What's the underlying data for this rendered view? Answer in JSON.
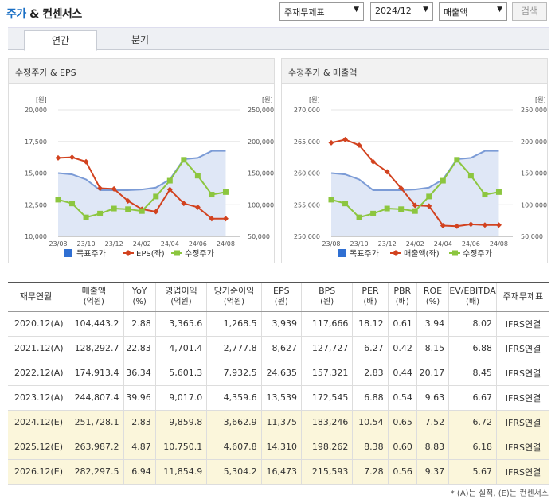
{
  "header": {
    "title_main": "주가",
    "title_rest": " & 컨센서스",
    "select_type": "주재무제표",
    "select_period": "2024/12",
    "select_metric": "매출액",
    "search_label": "검색"
  },
  "tabs": [
    "연간",
    "분기"
  ],
  "charts": [
    {
      "title": "수정주가 & EPS",
      "left_unit": "[원]",
      "right_unit": "[원]",
      "left_ticks": [
        "20,000",
        "17,500",
        "15,000",
        "12,500",
        "10,000"
      ],
      "right_ticks": [
        "250,000",
        "200,000",
        "150,000",
        "100,000",
        "50,000"
      ],
      "x_ticks": [
        "23/08",
        "23/10",
        "23/12",
        "24/02",
        "24/04",
        "24/06",
        "24/08"
      ],
      "legend": [
        "목표주가",
        "EPS(좌)",
        "수정주가"
      ]
    },
    {
      "title": "수정주가 & 매출액",
      "left_unit": "[원]",
      "right_unit": "[원]",
      "left_ticks": [
        "270,000",
        "265,000",
        "260,000",
        "255,000",
        "250,000"
      ],
      "right_ticks": [
        "250,000",
        "200,000",
        "150,000",
        "100,000",
        "50,000"
      ],
      "x_ticks": [
        "23/08",
        "23/10",
        "23/12",
        "24/02",
        "24/04",
        "24/06",
        "24/08"
      ],
      "legend": [
        "목표주가",
        "매출액(좌)",
        "수정주가"
      ]
    }
  ],
  "chart_data": [
    {
      "type": "line",
      "title": "수정주가 & EPS",
      "x": [
        0,
        1,
        2,
        3,
        4,
        5,
        6,
        7,
        8,
        9,
        10,
        11,
        12,
        13
      ],
      "x_tick_labels": [
        "23/08",
        "23/10",
        "23/12",
        "24/02",
        "24/04",
        "24/06",
        "24/08"
      ],
      "left_range": [
        10000,
        20000
      ],
      "right_range": [
        50000,
        250000
      ],
      "series": [
        {
          "name": "목표주가",
          "axis": "right",
          "color": "#7b9bd6",
          "area": true,
          "values": [
            150000,
            148000,
            140000,
            123000,
            123000,
            123000,
            124000,
            127000,
            140000,
            172000,
            174000,
            185000,
            185000,
            null
          ]
        },
        {
          "name": "EPS(좌)",
          "axis": "left",
          "color": "#d2421f",
          "marker": "diamond",
          "values": [
            16200,
            16250,
            15900,
            13800,
            13750,
            12800,
            12150,
            11950,
            13700,
            12600,
            12300,
            11400,
            11400,
            null
          ]
        },
        {
          "name": "수정주가",
          "axis": "right",
          "color": "#8cc63f",
          "marker": "square",
          "values": [
            108000,
            102000,
            80000,
            86000,
            94000,
            93000,
            90000,
            113000,
            138000,
            171000,
            146000,
            116000,
            120000,
            null
          ]
        }
      ]
    },
    {
      "type": "line",
      "title": "수정주가 & 매출액",
      "x": [
        0,
        1,
        2,
        3,
        4,
        5,
        6,
        7,
        8,
        9,
        10,
        11,
        12,
        13
      ],
      "x_tick_labels": [
        "23/08",
        "23/10",
        "23/12",
        "24/02",
        "24/04",
        "24/06",
        "24/08"
      ],
      "left_range": [
        250000,
        270000
      ],
      "right_range": [
        50000,
        250000
      ],
      "series": [
        {
          "name": "목표주가",
          "axis": "right",
          "color": "#7b9bd6",
          "area": true,
          "values": [
            150000,
            148000,
            140000,
            123000,
            123000,
            123000,
            124000,
            127000,
            140000,
            172000,
            174000,
            185000,
            185000,
            null
          ]
        },
        {
          "name": "매출액(좌)",
          "axis": "left",
          "color": "#d2421f",
          "marker": "diamond",
          "values": [
            264800,
            265300,
            264400,
            261800,
            260200,
            257600,
            254900,
            254800,
            251700,
            251600,
            251900,
            251800,
            251800,
            null
          ]
        },
        {
          "name": "수정주가",
          "axis": "right",
          "color": "#8cc63f",
          "marker": "square",
          "values": [
            108000,
            102000,
            80000,
            86000,
            94000,
            93000,
            90000,
            113000,
            138000,
            171000,
            146000,
            116000,
            120000,
            null
          ]
        }
      ]
    }
  ],
  "table": {
    "headers": [
      [
        "재무연월",
        ""
      ],
      [
        "매출액",
        "(억원)"
      ],
      [
        "YoY",
        "(%)"
      ],
      [
        "영업이익",
        "(억원)"
      ],
      [
        "당기순이익",
        "(억원)"
      ],
      [
        "EPS",
        "(원)"
      ],
      [
        "BPS",
        "(원)"
      ],
      [
        "PER",
        "(배)"
      ],
      [
        "PBR",
        "(배)"
      ],
      [
        "ROE",
        "(%)"
      ],
      [
        "EV/EBITDA",
        "(배)"
      ],
      [
        "주재무제표",
        ""
      ]
    ],
    "rows": [
      [
        "2020.12(A)",
        "104,443.2",
        "2.88",
        "3,365.6",
        "1,268.5",
        "3,939",
        "117,666",
        "18.12",
        "0.61",
        "3.94",
        "8.02",
        "IFRS연결"
      ],
      [
        "2021.12(A)",
        "128,292.7",
        "22.83",
        "4,701.4",
        "2,777.8",
        "8,627",
        "127,727",
        "6.27",
        "0.42",
        "8.15",
        "6.88",
        "IFRS연결"
      ],
      [
        "2022.12(A)",
        "174,913.4",
        "36.34",
        "5,601.3",
        "7,932.5",
        "24,635",
        "157,321",
        "2.83",
        "0.44",
        "20.17",
        "8.45",
        "IFRS연결"
      ],
      [
        "2023.12(A)",
        "244,807.4",
        "39.96",
        "9,017.0",
        "4,359.6",
        "13,539",
        "172,545",
        "6.88",
        "0.54",
        "9.63",
        "6.67",
        "IFRS연결"
      ],
      [
        "2024.12(E)",
        "251,728.1",
        "2.83",
        "9,859.8",
        "3,662.9",
        "11,375",
        "183,246",
        "10.54",
        "0.65",
        "7.52",
        "6.72",
        "IFRS연결"
      ],
      [
        "2025.12(E)",
        "263,987.2",
        "4.87",
        "10,750.1",
        "4,607.8",
        "14,310",
        "198,262",
        "8.38",
        "0.60",
        "8.83",
        "6.18",
        "IFRS연결"
      ],
      [
        "2026.12(E)",
        "282,297.5",
        "6.94",
        "11,854.9",
        "5,304.2",
        "16,473",
        "215,593",
        "7.28",
        "0.56",
        "9.37",
        "5.67",
        "IFRS연결"
      ]
    ],
    "estimate_rows": [
      4,
      5,
      6
    ]
  },
  "footnote": "* (A)는 실적, (E)는 컨센서스"
}
